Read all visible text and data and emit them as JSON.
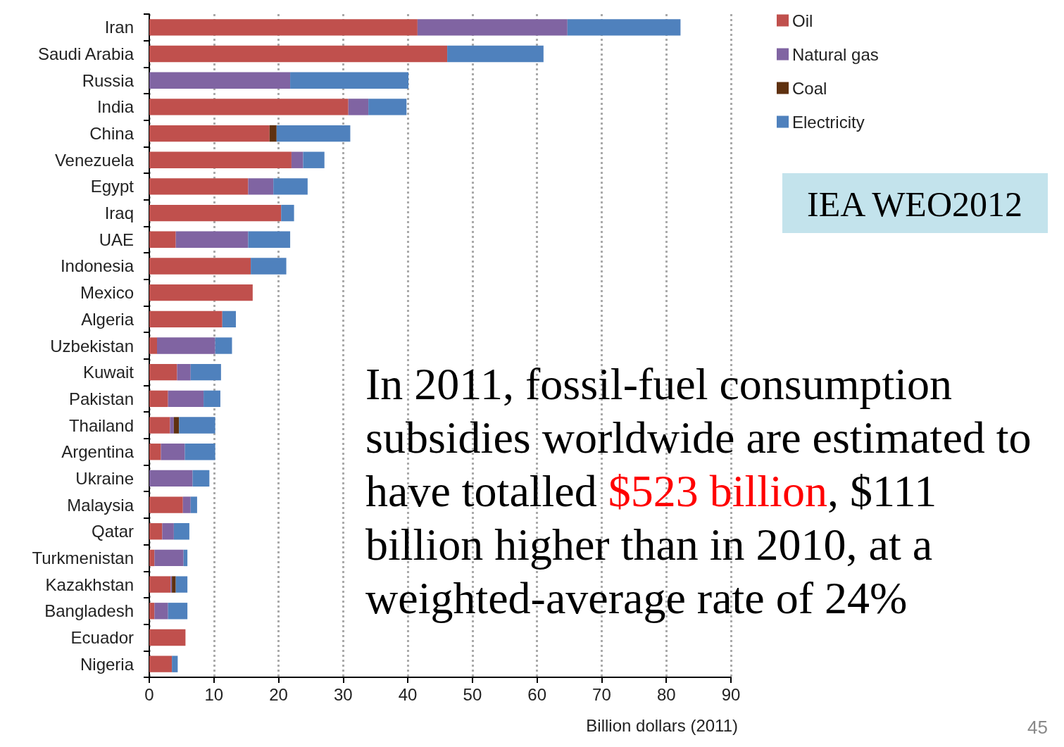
{
  "chart_data": {
    "type": "bar",
    "orientation": "horizontal",
    "stacked": true,
    "xlabel": "Billion dollars (2011)",
    "categories": [
      "Iran",
      "Saudi Arabia",
      "Russia",
      "India",
      "China",
      "Venezuela",
      "Egypt",
      "Iraq",
      "UAE",
      "Indonesia",
      "Mexico",
      "Algeria",
      "Uzbekistan",
      "Kuwait",
      "Pakistan",
      "Thailand",
      "Argentina",
      "Ukraine",
      "Malaysia",
      "Qatar",
      "Turkmenistan",
      "Kazakhstan",
      "Bangladesh",
      "Ecuador",
      "Nigeria"
    ],
    "series": [
      {
        "name": "Oil",
        "color": "#c0504d",
        "values": [
          41.5,
          46.1,
          0,
          30.8,
          18.6,
          22.0,
          15.3,
          20.4,
          4.1,
          15.7,
          16.0,
          11.3,
          1.2,
          4.3,
          2.9,
          3.2,
          1.8,
          0,
          5.2,
          2.0,
          0.8,
          3.3,
          0.8,
          5.6,
          3.5
        ]
      },
      {
        "name": "Natural gas",
        "color": "#8064a2",
        "values": [
          23.2,
          0,
          21.8,
          3.1,
          0,
          1.8,
          3.9,
          0,
          11.2,
          0,
          0,
          0,
          9.0,
          2.1,
          5.5,
          0.6,
          3.7,
          6.7,
          1.2,
          1.8,
          4.5,
          0.2,
          2.1,
          0,
          0
        ]
      },
      {
        "name": "Coal",
        "color": "#5f3110",
        "values": [
          0,
          0,
          0,
          0,
          1.1,
          0,
          0,
          0,
          0,
          0,
          0,
          0,
          0,
          0,
          0,
          0.8,
          0,
          0,
          0,
          0,
          0,
          0.6,
          0,
          0,
          0
        ]
      },
      {
        "name": "Electricity",
        "color": "#4f81bd",
        "values": [
          17.5,
          14.9,
          18.3,
          5.9,
          11.4,
          3.3,
          5.3,
          2.0,
          6.5,
          5.5,
          0,
          2.1,
          2.6,
          4.7,
          2.6,
          5.6,
          4.7,
          2.6,
          1.0,
          2.4,
          0.6,
          1.8,
          3.0,
          0,
          0.9
        ]
      }
    ],
    "xlim": [
      0,
      90
    ],
    "xticks": [
      0,
      10,
      20,
      30,
      40,
      50,
      60,
      70,
      80,
      90
    ],
    "grid": "x",
    "legend": "top right",
    "annotations": [
      "IEA WEO2012",
      "In 2011, fossil-fuel consumption subsidies worldwide are estimated to have totalled ",
      "$523 billion",
      ", $111 billion higher than in 2010, at a weighted-average rate of 24%",
      "45"
    ]
  }
}
